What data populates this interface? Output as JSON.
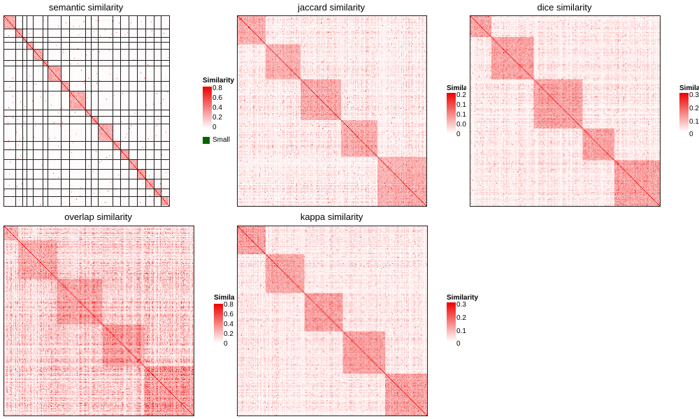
{
  "chart_data": [
    {
      "type": "heatmap",
      "title": "semantic similarity",
      "legend": {
        "title": "Similarity",
        "ticks": [
          "0.8",
          "0.6",
          "0.4",
          "0.2",
          "0"
        ],
        "range": [
          0,
          0.8
        ],
        "extra_label": "Small"
      },
      "seed": 11,
      "blocks": [
        [
          0,
          16
        ],
        [
          16,
          26
        ],
        [
          26,
          32
        ],
        [
          32,
          41
        ],
        [
          41,
          55
        ],
        [
          55,
          62
        ],
        [
          62,
          81
        ],
        [
          81,
          93
        ],
        [
          93,
          116
        ],
        [
          116,
          124
        ],
        [
          124,
          134
        ],
        [
          134,
          155
        ],
        [
          155,
          166
        ],
        [
          166,
          178
        ],
        [
          178,
          190
        ],
        [
          190,
          202
        ],
        [
          202,
          214
        ],
        [
          214,
          224
        ],
        [
          224,
          235
        ]
      ],
      "block_strength": 0.45,
      "background": 0.02,
      "colors": {
        "low": "#ffffff",
        "high": "#ee0000",
        "small": "#006400"
      }
    },
    {
      "type": "heatmap",
      "title": "jaccard similarity",
      "legend": {
        "title": "Similarity",
        "ticks": [
          "0.2",
          "0.1",
          "0.1",
          "0.0",
          "0"
        ],
        "range": [
          0,
          0.2
        ]
      },
      "seed": 23,
      "blocks": [
        [
          0,
          40
        ],
        [
          40,
          90
        ],
        [
          90,
          148
        ],
        [
          148,
          200
        ],
        [
          200,
          270
        ]
      ],
      "block_strength": 0.35,
      "background": 0.12,
      "colors": {
        "low": "#ffffff",
        "high": "#ee0000"
      }
    },
    {
      "type": "heatmap",
      "title": "dice similarity",
      "legend": {
        "title": "Similarity",
        "ticks": [
          "0.3",
          "0.2",
          "0.1",
          "0"
        ],
        "range": [
          0,
          0.3
        ]
      },
      "seed": 37,
      "blocks": [
        [
          0,
          30
        ],
        [
          30,
          90
        ],
        [
          90,
          160
        ],
        [
          160,
          205
        ],
        [
          205,
          270
        ]
      ],
      "block_strength": 0.4,
      "background": 0.12,
      "colors": {
        "low": "#ffffff",
        "high": "#ee0000"
      }
    },
    {
      "type": "heatmap",
      "title": "overlap similarity",
      "legend": {
        "title": "Similarity",
        "ticks": [
          "0.8",
          "0.6",
          "0.4",
          "0.2",
          "0"
        ],
        "range": [
          0,
          0.8
        ]
      },
      "seed": 53,
      "blocks": [
        [
          0,
          20
        ],
        [
          20,
          75
        ],
        [
          75,
          140
        ],
        [
          140,
          200
        ],
        [
          200,
          270
        ]
      ],
      "block_strength": 0.28,
      "background": 0.25,
      "colors": {
        "low": "#ffffff",
        "high": "#ee0000"
      }
    },
    {
      "type": "heatmap",
      "title": "kappa similarity",
      "legend": {
        "title": "Similarity",
        "ticks": [
          "0.3",
          "0.2",
          "0.1",
          "0"
        ],
        "range": [
          0,
          0.3
        ]
      },
      "seed": 71,
      "blocks": [
        [
          0,
          40
        ],
        [
          40,
          95
        ],
        [
          95,
          150
        ],
        [
          150,
          210
        ],
        [
          210,
          270
        ]
      ],
      "block_strength": 0.4,
      "background": 0.12,
      "colors": {
        "low": "#ffffff",
        "high": "#ee0000"
      }
    }
  ]
}
